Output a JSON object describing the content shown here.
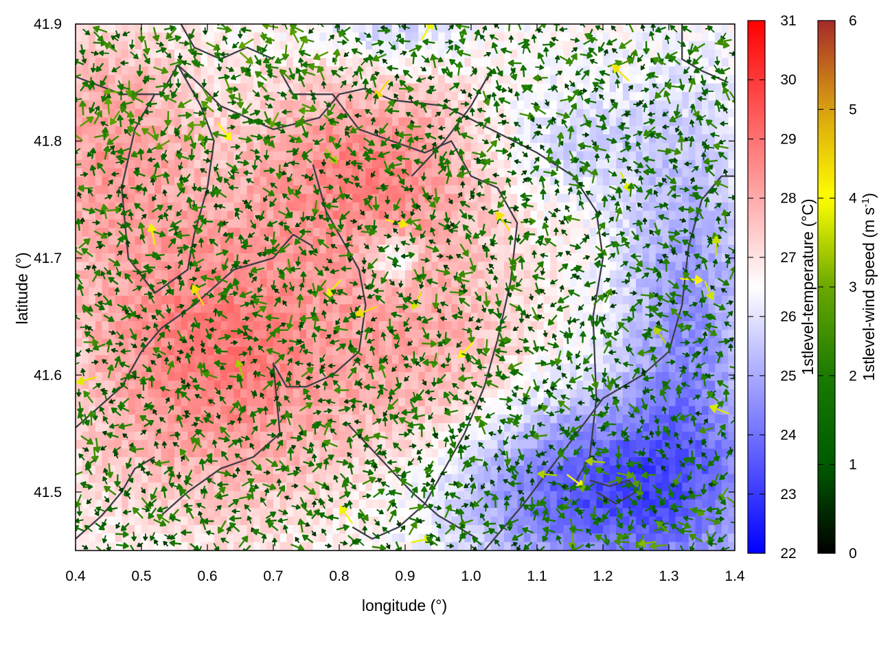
{
  "chart_data": {
    "type": "heatmap",
    "xlabel": "longitude (°)",
    "ylabel": "latitude (°)",
    "xlim": [
      0.4,
      1.4
    ],
    "ylim": [
      41.45,
      41.9
    ],
    "xticks": [
      "0.4",
      "0.5",
      "0.6",
      "0.7",
      "0.8",
      "0.9",
      "1.0",
      "1.1",
      "1.2",
      "1.3",
      "1.4"
    ],
    "yticks": [
      "41.5",
      "41.6",
      "41.7",
      "41.8",
      "41.9"
    ],
    "grid": false,
    "overlays": [
      "wind-vectors",
      "boundary-contours"
    ],
    "colorbars": [
      {
        "variable": "temperature",
        "label_parts": [
          "1stlevel-temperature (°C)"
        ],
        "range": [
          22,
          31
        ],
        "ticks": [
          "22",
          "23",
          "24",
          "25",
          "26",
          "27",
          "28",
          "29",
          "30",
          "31"
        ],
        "colors": [
          "#0000ff",
          "#ffffff",
          "#ff0000"
        ]
      },
      {
        "variable": "wind-speed",
        "label_parts": [
          "1stlevel-wind speed (m s",
          "-1",
          ")"
        ],
        "range": [
          0,
          6
        ],
        "ticks": [
          "0",
          "1",
          "2",
          "3",
          "4",
          "5",
          "6"
        ],
        "colors": [
          "#000000",
          "#005a00",
          "#1a7a00",
          "#6aa800",
          "#ffff00",
          "#d9a010",
          "#a52a2a"
        ]
      }
    ],
    "temperature_field_approx": {
      "warm_region": "west and centre (28–30 °C, max ~30 near lon 0.65–0.85, lat 41.55–41.85)",
      "cool_region": "south-east (23–25 °C near lon 1.1–1.4, lat 41.45–41.6)",
      "wind_speed_typical": "0.5–2.5 m/s, locally up to ~4 m/s"
    }
  }
}
